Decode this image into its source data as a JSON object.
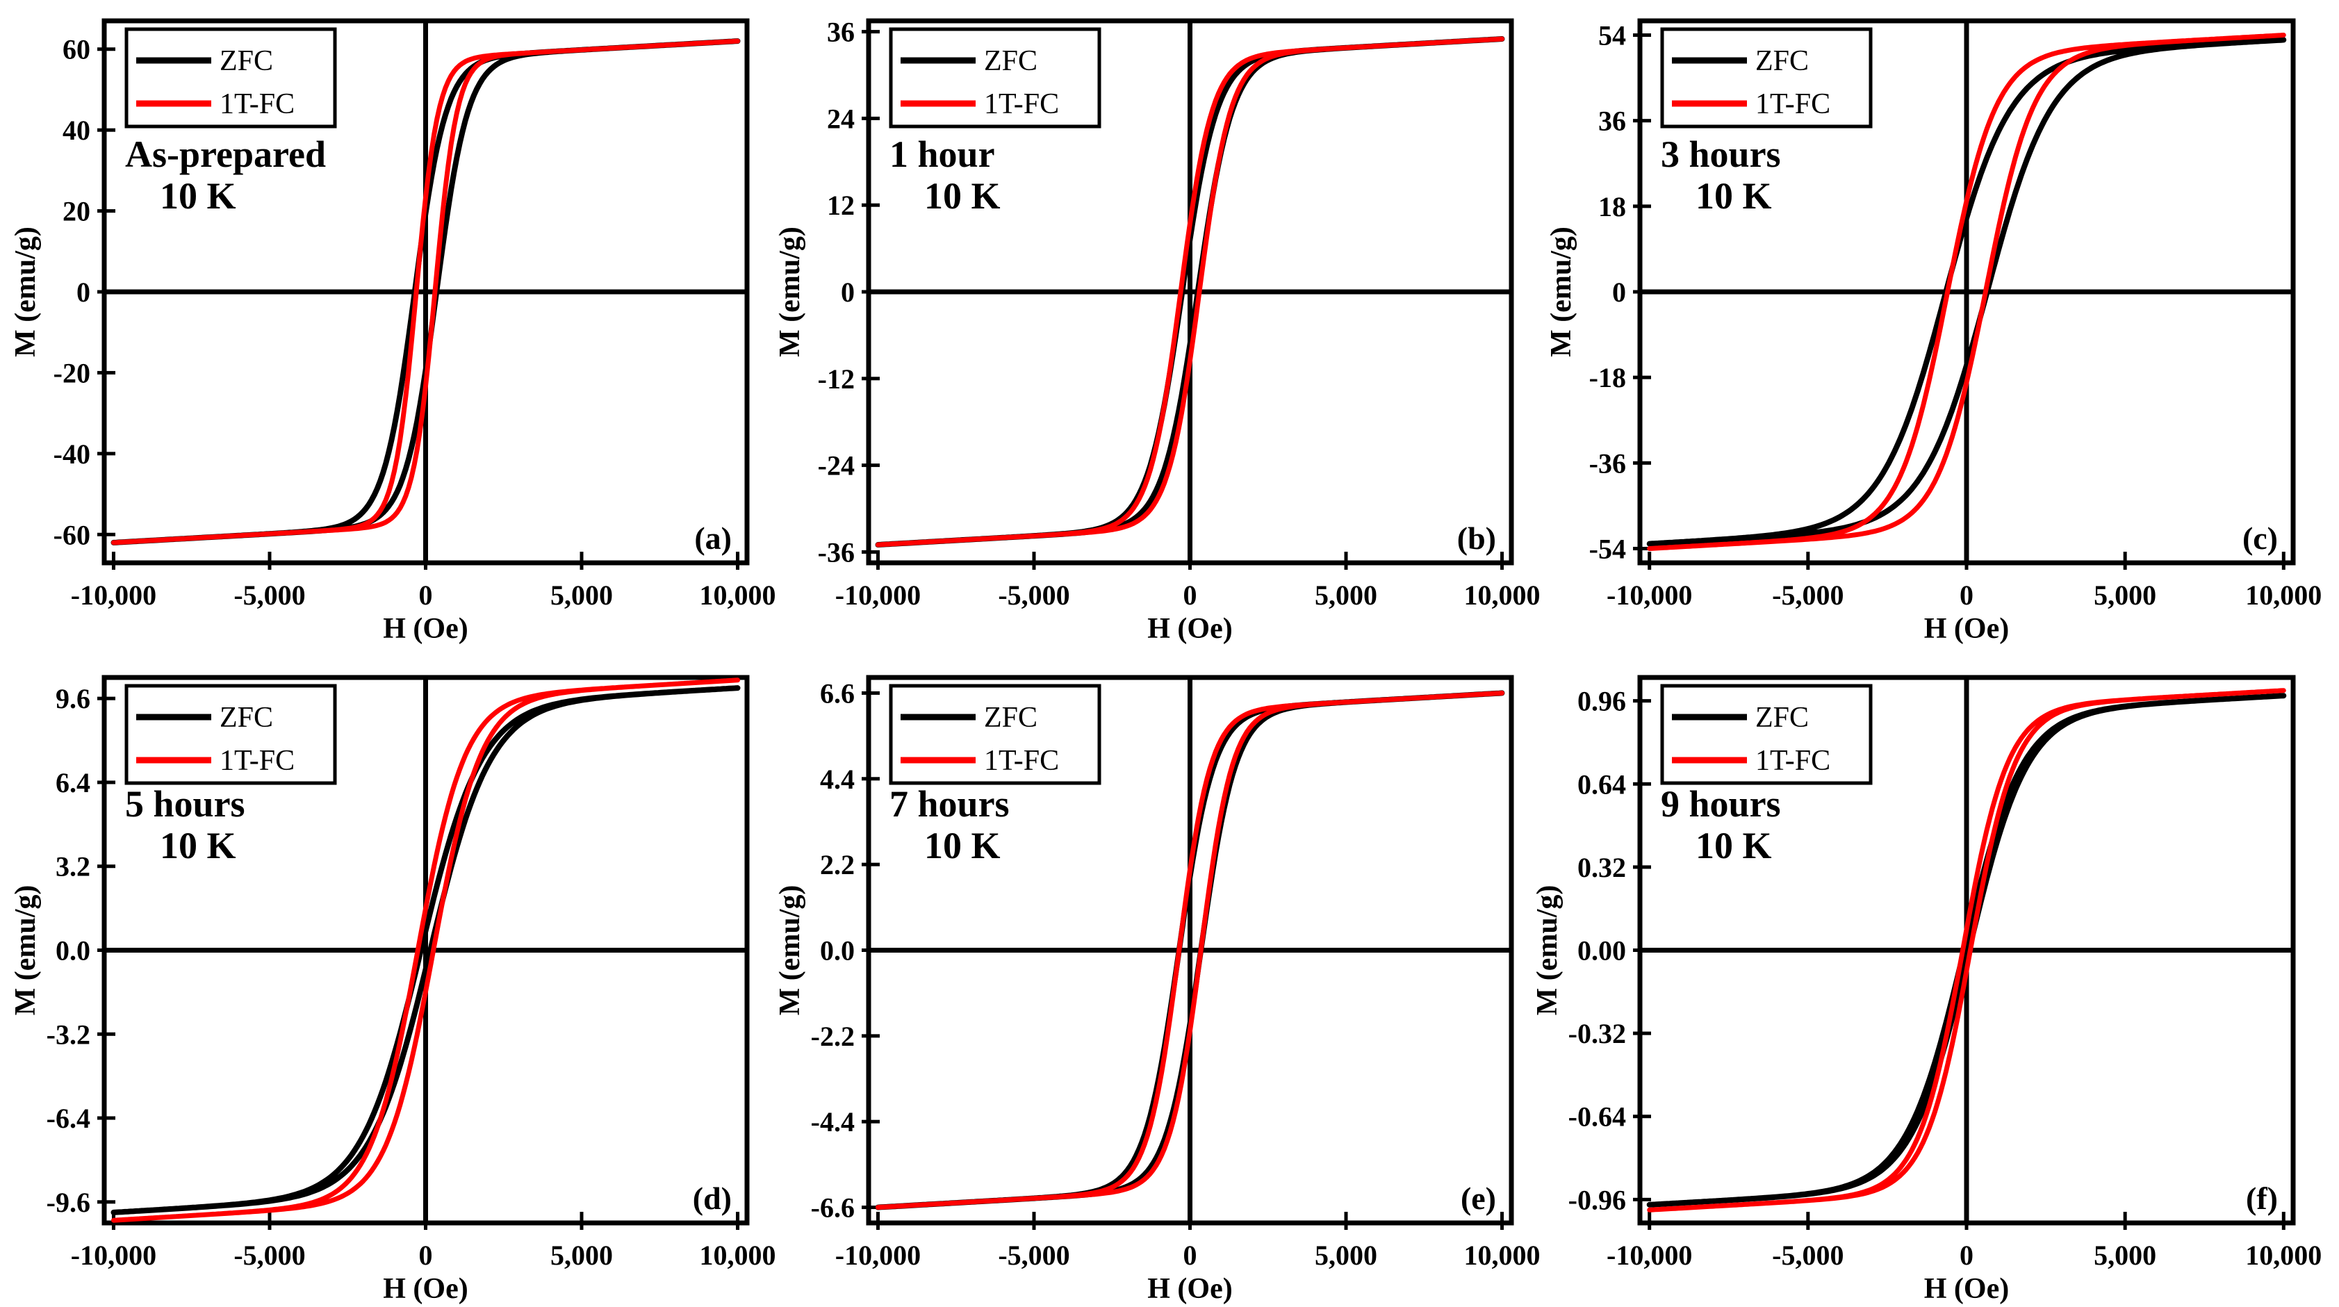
{
  "figure": {
    "background": "#ffffff",
    "axis_color": "#000000"
  },
  "legend_entries": [
    {
      "name": "ZFC",
      "color": "#000000"
    },
    {
      "name": "1T-FC",
      "color": "#ff0000"
    }
  ],
  "chart_data": [
    {
      "type": "line",
      "panel_label": "(a)",
      "annotation_lines": [
        "As-prepared",
        "10 K"
      ],
      "xlabel": "H (Oe)",
      "ylabel": "M (emu/g)",
      "xlim": [
        -10300,
        10300
      ],
      "ylim": [
        -67,
        67
      ],
      "xticks": [
        -10000,
        -5000,
        0,
        5000,
        10000
      ],
      "xtick_labels": [
        "-10,000",
        "-5,000",
        "0",
        "5,000",
        "10,000"
      ],
      "yticks": [
        -60,
        -40,
        -20,
        0,
        20,
        40,
        60
      ],
      "ytick_labels": [
        "-60",
        "-40",
        "-20",
        "0",
        "20",
        "40",
        "60"
      ],
      "series": [
        {
          "name": "ZFC",
          "color": "#000000",
          "Ms": 62,
          "Hc": 350,
          "Hk": 1000,
          "shift": 0
        },
        {
          "name": "1T-FC",
          "color": "#ff0000",
          "Ms": 62,
          "Hc": 300,
          "Hk": 700,
          "shift": 0
        }
      ]
    },
    {
      "type": "line",
      "panel_label": "(b)",
      "annotation_lines": [
        "1 hour",
        "10 K"
      ],
      "xlabel": "H (Oe)",
      "ylabel": "M (emu/g)",
      "xlim": [
        -10300,
        10300
      ],
      "ylim": [
        -37.5,
        37.5
      ],
      "xticks": [
        -10000,
        -5000,
        0,
        5000,
        10000
      ],
      "xtick_labels": [
        "-10,000",
        "-5,000",
        "0",
        "5,000",
        "10,000"
      ],
      "yticks": [
        -36,
        -24,
        -12,
        0,
        12,
        24,
        36
      ],
      "ytick_labels": [
        "-36",
        "-24",
        "-12",
        "0",
        "12",
        "24",
        "36"
      ],
      "series": [
        {
          "name": "ZFC",
          "color": "#000000",
          "Ms": 35,
          "Hc": 250,
          "Hk": 1100,
          "shift": 0
        },
        {
          "name": "1T-FC",
          "color": "#ff0000",
          "Ms": 35,
          "Hc": 300,
          "Hk": 1000,
          "shift": 0
        }
      ]
    },
    {
      "type": "line",
      "panel_label": "(c)",
      "annotation_lines": [
        "3 hours",
        "10 K"
      ],
      "xlabel": "H (Oe)",
      "ylabel": "M (emu/g)",
      "xlim": [
        -10300,
        10300
      ],
      "ylim": [
        -57,
        57
      ],
      "xticks": [
        -10000,
        -5000,
        0,
        5000,
        10000
      ],
      "xtick_labels": [
        "-10,000",
        "-5,000",
        "0",
        "5,000",
        "10,000"
      ],
      "yticks": [
        -54,
        -36,
        -18,
        0,
        18,
        36,
        54
      ],
      "ytick_labels": [
        "-54",
        "-36",
        "-18",
        "0",
        "18",
        "36",
        "54"
      ],
      "series": [
        {
          "name": "ZFC",
          "color": "#000000",
          "Ms": 53,
          "Hc": 650,
          "Hk": 2000,
          "shift": 0
        },
        {
          "name": "1T-FC",
          "color": "#ff0000",
          "Ms": 54,
          "Hc": 600,
          "Hk": 1500,
          "shift": 0
        }
      ]
    },
    {
      "type": "line",
      "panel_label": "(d)",
      "annotation_lines": [
        "5 hours",
        "10 K"
      ],
      "xlabel": "H (Oe)",
      "ylabel": "M (emu/g)",
      "xlim": [
        -10300,
        10300
      ],
      "ylim": [
        -10.4,
        10.4
      ],
      "xticks": [
        -10000,
        -5000,
        0,
        5000,
        10000
      ],
      "xtick_labels": [
        "-10,000",
        "-5,000",
        "0",
        "5,000",
        "10,000"
      ],
      "yticks": [
        -9.6,
        -6.4,
        -3.2,
        0,
        3.2,
        6.4,
        9.6
      ],
      "ytick_labels": [
        "-9.6",
        "-6.4",
        "-3.2",
        "0.0",
        "3.2",
        "6.4",
        "9.6"
      ],
      "series": [
        {
          "name": "ZFC",
          "color": "#000000",
          "Ms": 10.0,
          "Hc": 150,
          "Hk": 1900,
          "shift": 0
        },
        {
          "name": "1T-FC",
          "color": "#ff0000",
          "Ms": 10.3,
          "Hc": 250,
          "Hk": 1500,
          "shift": 0
        }
      ]
    },
    {
      "type": "line",
      "panel_label": "(e)",
      "annotation_lines": [
        "7 hours",
        "10 K"
      ],
      "xlabel": "H (Oe)",
      "ylabel": "M (emu/g)",
      "xlim": [
        -10300,
        10300
      ],
      "ylim": [
        -7.0,
        7.0
      ],
      "xticks": [
        -10000,
        -5000,
        0,
        5000,
        10000
      ],
      "xtick_labels": [
        "-10,000",
        "-5,000",
        "0",
        "5,000",
        "10,000"
      ],
      "yticks": [
        -6.6,
        -4.4,
        -2.2,
        0,
        2.2,
        4.4,
        6.6
      ],
      "ytick_labels": [
        "-6.6",
        "-4.4",
        "-2.2",
        "0.0",
        "2.2",
        "4.4",
        "6.6"
      ],
      "series": [
        {
          "name": "ZFC",
          "color": "#000000",
          "Ms": 6.6,
          "Hc": 350,
          "Hk": 1100,
          "shift": 0
        },
        {
          "name": "1T-FC",
          "color": "#ff0000",
          "Ms": 6.6,
          "Hc": 350,
          "Hk": 1000,
          "shift": 0
        }
      ]
    },
    {
      "type": "line",
      "panel_label": "(f)",
      "annotation_lines": [
        "9 hours",
        "10 K"
      ],
      "xlabel": "H (Oe)",
      "ylabel": "M (emu/g)",
      "xlim": [
        -10300,
        10300
      ],
      "ylim": [
        -1.05,
        1.05
      ],
      "xticks": [
        -10000,
        -5000,
        0,
        5000,
        10000
      ],
      "xtick_labels": [
        "-10,000",
        "-5,000",
        "0",
        "5,000",
        "10,000"
      ],
      "yticks": [
        -0.96,
        -0.64,
        -0.32,
        0,
        0.32,
        0.64,
        0.96
      ],
      "ytick_labels": [
        "-0.96",
        "-0.64",
        "-0.32",
        "0.00",
        "0.32",
        "0.64",
        "0.96"
      ],
      "series": [
        {
          "name": "ZFC",
          "color": "#000000",
          "Ms": 0.98,
          "Hc": 80,
          "Hk": 1800,
          "shift": 0
        },
        {
          "name": "1T-FC",
          "color": "#ff0000",
          "Ms": 1.0,
          "Hc": 120,
          "Hk": 1400,
          "shift": 0
        }
      ]
    }
  ]
}
